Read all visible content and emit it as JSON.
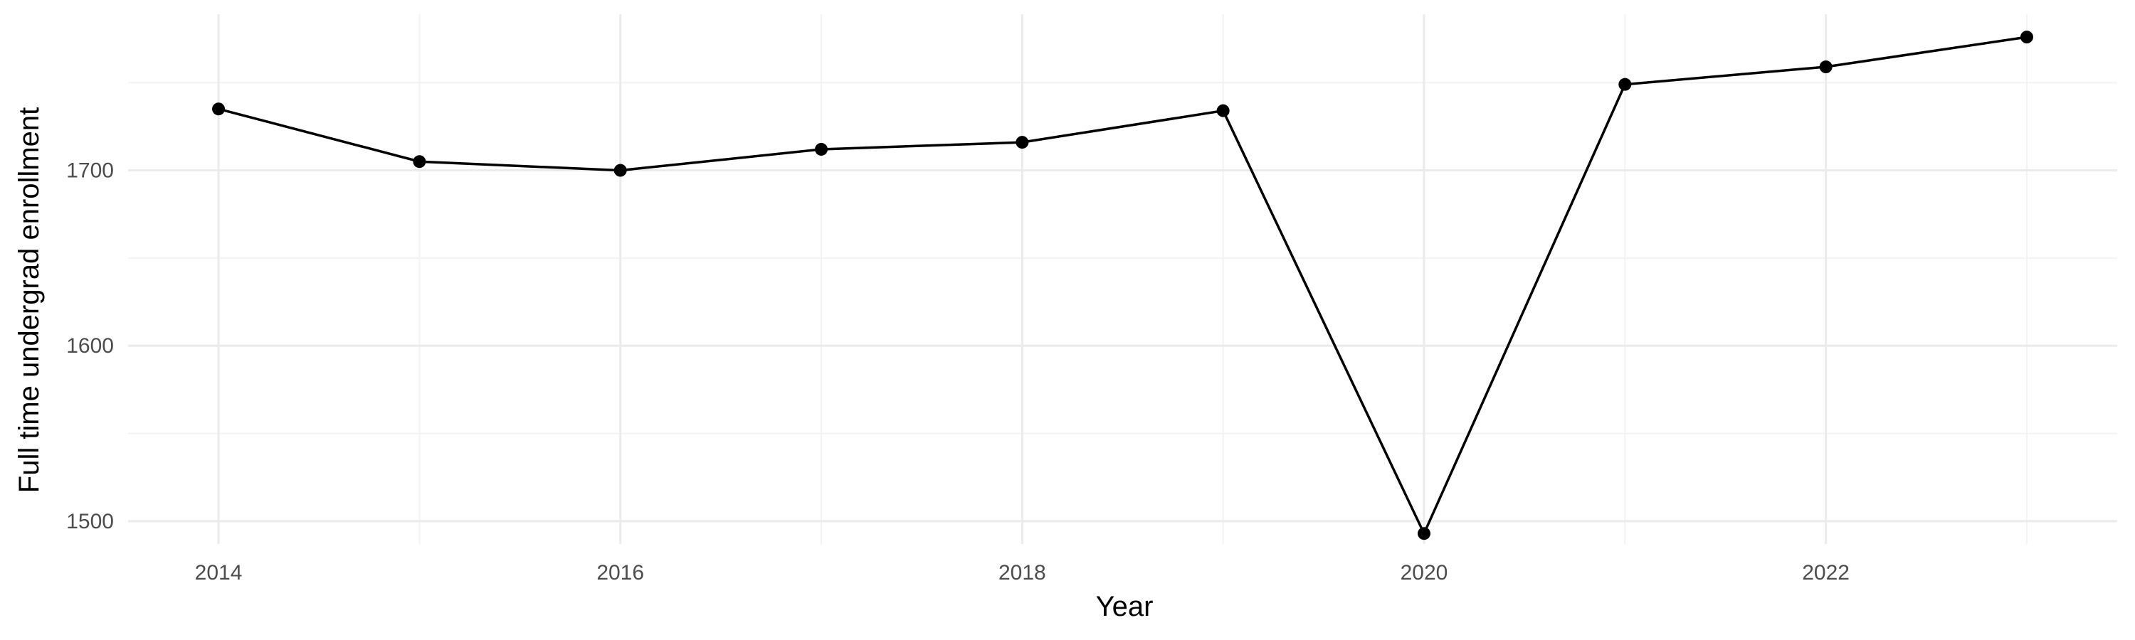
{
  "chart_data": {
    "type": "line",
    "title": "",
    "xlabel": "Year",
    "ylabel": "Full time undergrad enrollment",
    "x": [
      2014,
      2015,
      2016,
      2017,
      2018,
      2019,
      2020,
      2021,
      2022,
      2023
    ],
    "series": [
      {
        "values": [
          1735,
          1705,
          1700,
          1712,
          1716,
          1734,
          1493,
          1749,
          1759,
          1776
        ]
      }
    ],
    "xlim": [
      2013.55,
      2023.45
    ],
    "ylim": [
      1487,
      1789
    ],
    "x_ticks": [
      2014,
      2016,
      2018,
      2020,
      2022
    ],
    "x_tick_labels": [
      "2014",
      "2016",
      "2018",
      "2020",
      "2022"
    ],
    "x_minor_ticks": [
      2015,
      2017,
      2019,
      2021,
      2023
    ],
    "y_ticks": [
      1500,
      1600,
      1700
    ],
    "y_tick_labels": [
      "1500",
      "1600",
      "1700"
    ],
    "y_minor_ticks": [
      1550,
      1650,
      1750
    ],
    "grid": true,
    "legend": "none",
    "colors": {
      "line": "#000000",
      "point": "#000000",
      "grid_major": "#ebebeb",
      "grid_minor": "#f3f3f3",
      "tick_text": "#4d4d4d"
    }
  }
}
